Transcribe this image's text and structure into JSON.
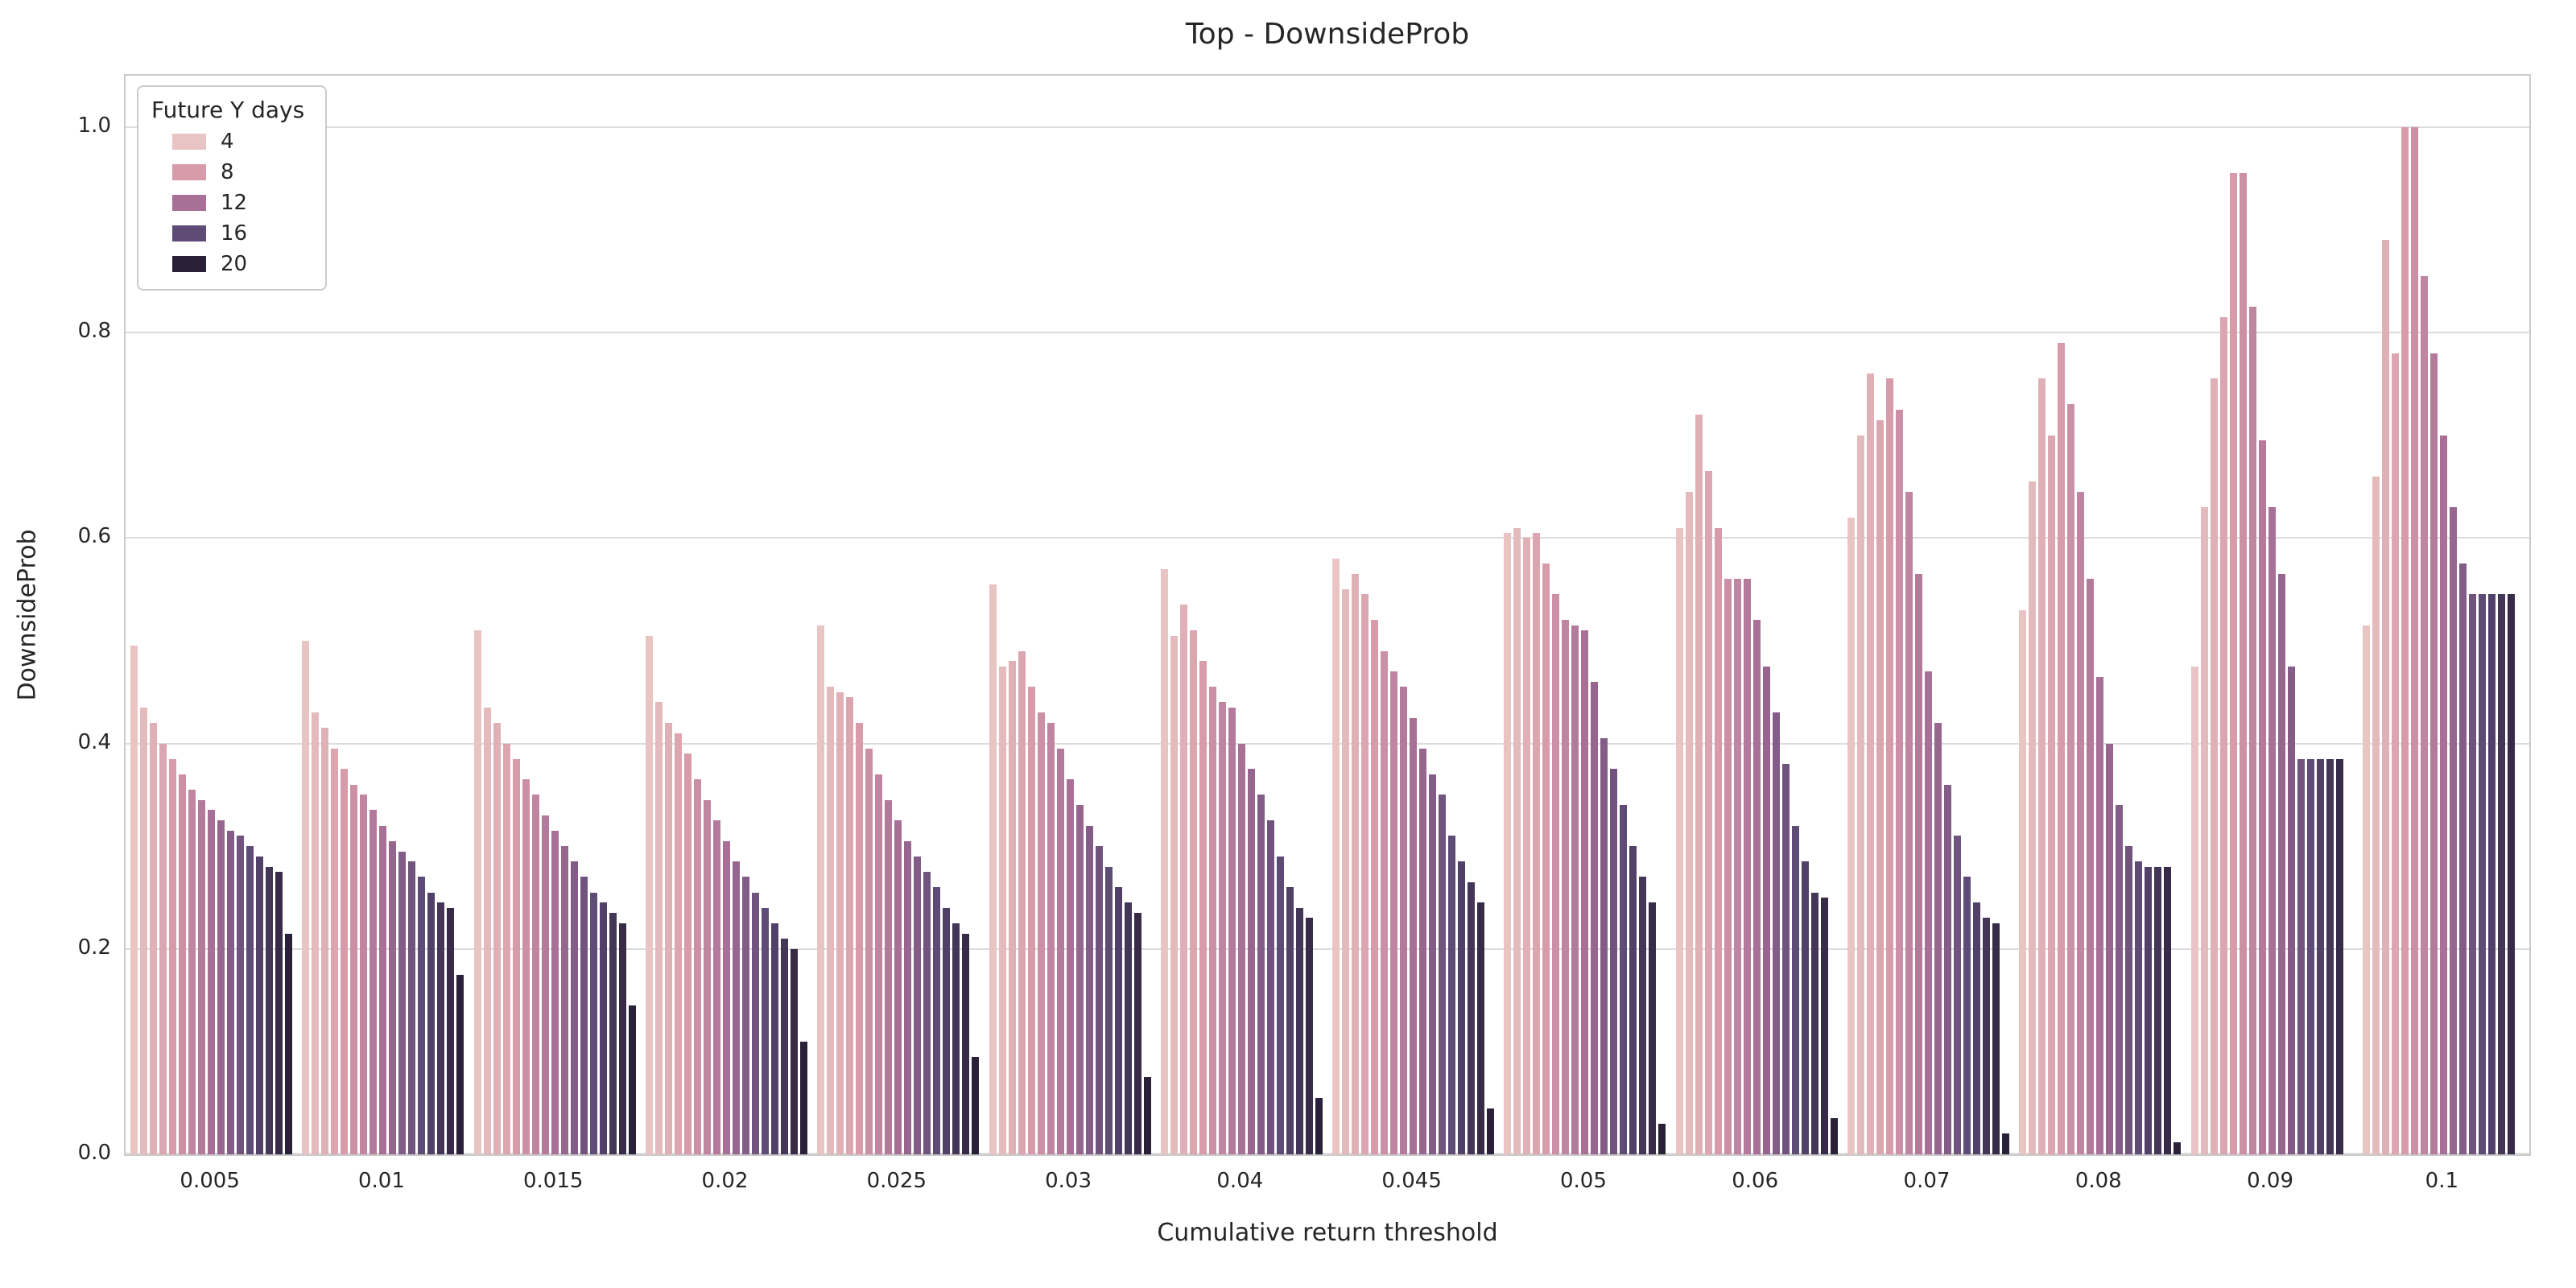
{
  "chart_data": {
    "type": "bar",
    "title": "Top - DownsideProb",
    "xlabel": "Cumulative return threshold",
    "ylabel": "DownsideProb",
    "ylim": [
      0.0,
      1.05
    ],
    "yticks": [
      0.0,
      0.2,
      0.4,
      0.6,
      0.8,
      1.0
    ],
    "grid": true,
    "legend": {
      "title": "Future Y days",
      "entries": [
        "4",
        "8",
        "12",
        "16",
        "20"
      ],
      "position": "upper-left"
    },
    "hue_days": [
      4,
      5,
      6,
      7,
      8,
      9,
      10,
      11,
      12,
      13,
      14,
      15,
      16,
      17,
      18,
      19,
      20
    ],
    "palette_stops": [
      {
        "day": 4,
        "color": "#e8c5c3"
      },
      {
        "day": 8,
        "color": "#d79baa"
      },
      {
        "day": 12,
        "color": "#a86f97"
      },
      {
        "day": 16,
        "color": "#5e4b76"
      },
      {
        "day": 20,
        "color": "#2a2038"
      }
    ],
    "categories": [
      "0.005",
      "0.01",
      "0.015",
      "0.02",
      "0.025",
      "0.03",
      "0.04",
      "0.045",
      "0.05",
      "0.06",
      "0.07",
      "0.08",
      "0.09",
      "0.1"
    ],
    "values_by_category": [
      [
        0.495,
        0.435,
        0.42,
        0.4,
        0.385,
        0.37,
        0.355,
        0.345,
        0.335,
        0.325,
        0.315,
        0.31,
        0.3,
        0.29,
        0.28,
        0.275,
        0.215
      ],
      [
        0.5,
        0.43,
        0.415,
        0.395,
        0.375,
        0.36,
        0.35,
        0.335,
        0.32,
        0.305,
        0.295,
        0.285,
        0.27,
        0.255,
        0.245,
        0.24,
        0.175
      ],
      [
        0.51,
        0.435,
        0.42,
        0.4,
        0.385,
        0.365,
        0.35,
        0.33,
        0.315,
        0.3,
        0.285,
        0.27,
        0.255,
        0.245,
        0.235,
        0.225,
        0.145
      ],
      [
        0.505,
        0.44,
        0.42,
        0.41,
        0.39,
        0.365,
        0.345,
        0.325,
        0.305,
        0.285,
        0.27,
        0.255,
        0.24,
        0.225,
        0.21,
        0.2,
        0.11
      ],
      [
        0.515,
        0.455,
        0.45,
        0.445,
        0.42,
        0.395,
        0.37,
        0.345,
        0.325,
        0.305,
        0.29,
        0.275,
        0.26,
        0.24,
        0.225,
        0.215,
        0.095
      ],
      [
        0.555,
        0.475,
        0.48,
        0.49,
        0.455,
        0.43,
        0.42,
        0.395,
        0.365,
        0.34,
        0.32,
        0.3,
        0.28,
        0.26,
        0.245,
        0.235,
        0.075
      ],
      [
        0.57,
        0.505,
        0.535,
        0.51,
        0.48,
        0.455,
        0.44,
        0.435,
        0.4,
        0.375,
        0.35,
        0.325,
        0.29,
        0.26,
        0.24,
        0.23,
        0.055
      ],
      [
        0.58,
        0.55,
        0.565,
        0.545,
        0.52,
        0.49,
        0.47,
        0.455,
        0.425,
        0.395,
        0.37,
        0.35,
        0.31,
        0.285,
        0.265,
        0.245,
        0.045
      ],
      [
        0.605,
        0.61,
        0.6,
        0.605,
        0.575,
        0.545,
        0.52,
        0.515,
        0.51,
        0.46,
        0.405,
        0.375,
        0.34,
        0.3,
        0.27,
        0.245,
        0.03
      ],
      [
        0.61,
        0.645,
        0.72,
        0.665,
        0.61,
        0.56,
        0.56,
        0.56,
        0.52,
        0.475,
        0.43,
        0.38,
        0.32,
        0.285,
        0.255,
        0.25,
        0.035
      ],
      [
        0.62,
        0.7,
        0.76,
        0.715,
        0.755,
        0.725,
        0.645,
        0.565,
        0.47,
        0.42,
        0.36,
        0.31,
        0.27,
        0.245,
        0.23,
        0.225,
        0.02
      ],
      [
        0.53,
        0.655,
        0.755,
        0.7,
        0.79,
        0.73,
        0.645,
        0.56,
        0.465,
        0.4,
        0.34,
        0.3,
        0.285,
        0.28,
        0.28,
        0.28,
        0.012
      ],
      [
        0.475,
        0.63,
        0.755,
        0.815,
        0.955,
        0.955,
        0.825,
        0.695,
        0.63,
        0.565,
        0.475,
        0.385,
        0.385,
        0.385,
        0.385,
        0.385,
        0.0
      ],
      [
        0.515,
        0.66,
        0.89,
        0.78,
        1.0,
        1.0,
        0.855,
        0.78,
        0.7,
        0.63,
        0.575,
        0.545,
        0.545,
        0.545,
        0.545,
        0.545,
        0.0
      ]
    ]
  }
}
